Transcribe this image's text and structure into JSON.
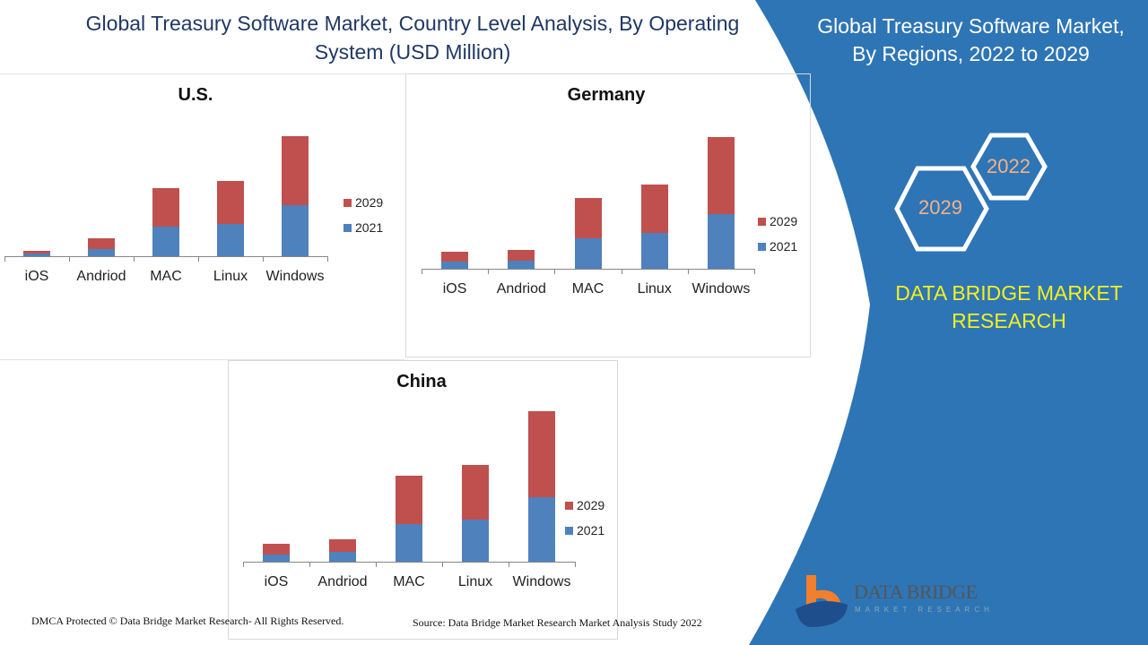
{
  "header": {
    "title_line1": "Global Treasury Software Market, Country Level Analysis, By Operating",
    "title_line2": "System (USD Million)"
  },
  "side": {
    "title_line1": "Global Treasury Software Market,",
    "title_line2": "By Regions, 2022 to 2029",
    "hex_a": "2022",
    "hex_b": "2029",
    "brand_line1": "DATA BRIDGE MARKET",
    "brand_line2": "RESEARCH",
    "logo_text": "DATA BRIDGE",
    "logo_sub": "MARKET RESEARCH"
  },
  "footer": {
    "left": "DMCA Protected © Data Bridge Market Research- All Rights Reserved.",
    "right": "Source: Data Bridge Market Research Market Analysis Study 2022"
  },
  "colors": {
    "s2021": "#4f81bd",
    "s2029": "#c0504d",
    "panel": "#2e75b6"
  },
  "chart_data": [
    {
      "type": "bar",
      "stacked": true,
      "title": "U.S.",
      "categories": [
        "iOS",
        "Andriod",
        "MAC",
        "Linux",
        "Windows"
      ],
      "series": [
        {
          "name": "2021",
          "values": [
            3,
            8,
            33,
            36,
            57
          ]
        },
        {
          "name": "2029",
          "values": [
            3,
            12,
            43,
            48,
            77
          ]
        }
      ],
      "legend": "right",
      "grid": false
    },
    {
      "type": "bar",
      "stacked": true,
      "title": "Germany",
      "categories": [
        "iOS",
        "Andriod",
        "MAC",
        "Linux",
        "Windows"
      ],
      "series": [
        {
          "name": "2021",
          "values": [
            8,
            9,
            34,
            40,
            61
          ]
        },
        {
          "name": "2029",
          "values": [
            11,
            12,
            45,
            54,
            86
          ]
        }
      ],
      "legend": "right",
      "grid": false
    },
    {
      "type": "bar",
      "stacked": true,
      "title": "China",
      "categories": [
        "iOS",
        "Andriod",
        "MAC",
        "Linux",
        "Windows"
      ],
      "series": [
        {
          "name": "2021",
          "values": [
            8,
            11,
            42,
            47,
            72
          ]
        },
        {
          "name": "2029",
          "values": [
            12,
            14,
            54,
            61,
            96
          ]
        }
      ],
      "legend": "right",
      "grid": false
    }
  ]
}
